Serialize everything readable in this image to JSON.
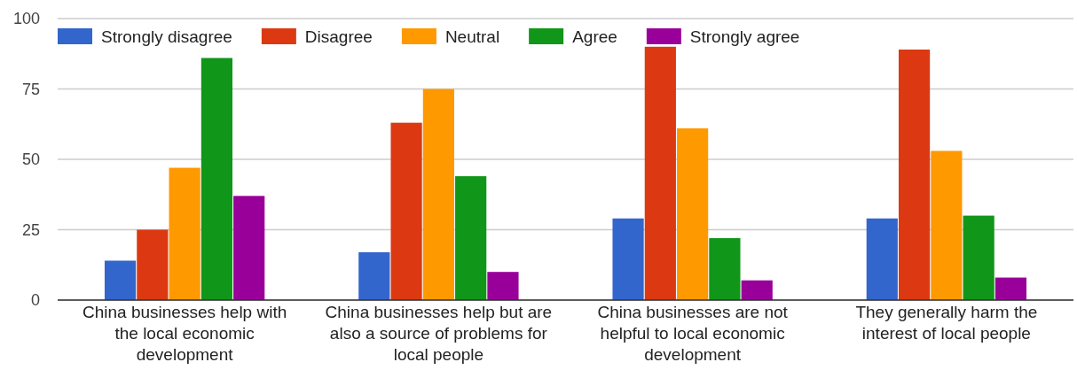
{
  "chart_data": {
    "type": "bar",
    "categories": [
      "China businesses help with the local economic development",
      "China businesses help but are also a source of problems for local people",
      "China businesses are not helpful to local economic development",
      "They generally harm the interest of local people"
    ],
    "series": [
      {
        "name": "Strongly disagree",
        "color": "#3366cc",
        "values": [
          14,
          17,
          29,
          29
        ]
      },
      {
        "name": "Disagree",
        "color": "#dc3912",
        "values": [
          25,
          63,
          90,
          89
        ]
      },
      {
        "name": "Neutral",
        "color": "#ff9900",
        "values": [
          47,
          75,
          61,
          53
        ]
      },
      {
        "name": "Agree",
        "color": "#109618",
        "values": [
          86,
          44,
          22,
          30
        ]
      },
      {
        "name": "Strongly agree",
        "color": "#990099",
        "values": [
          37,
          10,
          7,
          8
        ]
      }
    ],
    "ylim": [
      0,
      100
    ],
    "yticks": [
      0,
      25,
      50,
      75,
      100
    ],
    "grid": "y",
    "legend": "top left"
  }
}
